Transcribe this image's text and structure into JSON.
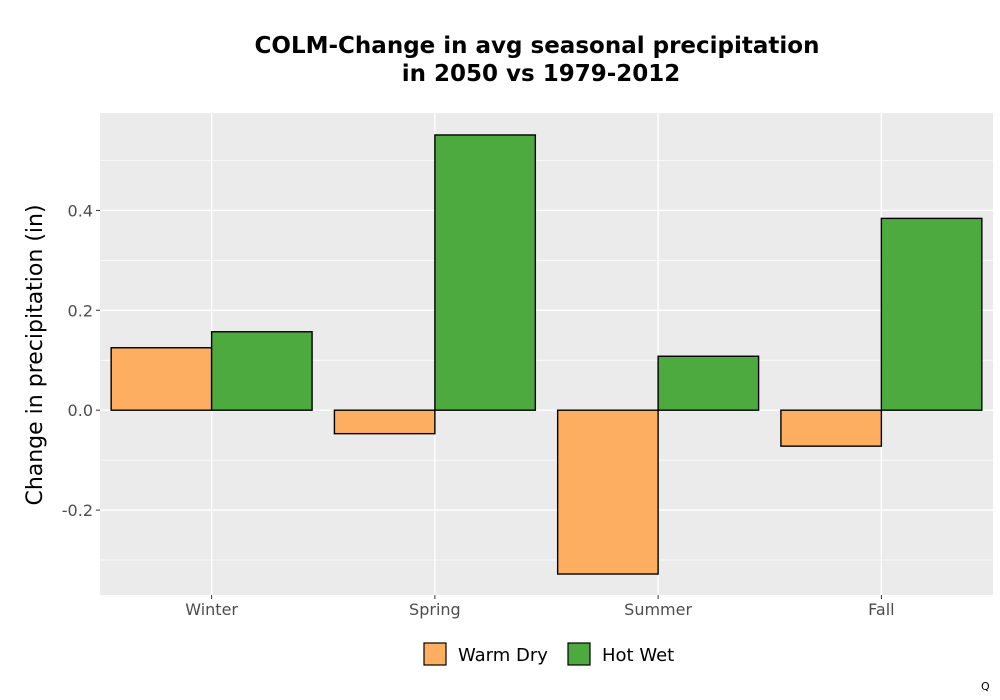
{
  "chart_data": {
    "type": "bar",
    "title": "COLM-Change in avg seasonal precipitation\nin 2050 vs 1979-2012",
    "xlabel": "",
    "ylabel": "Change in precipitation (in)",
    "categories": [
      "Winter",
      "Spring",
      "Summer",
      "Fall"
    ],
    "series": [
      {
        "name": "Warm Dry",
        "color": "#fdae61",
        "values": [
          0.125,
          -0.047,
          -0.328,
          -0.072
        ]
      },
      {
        "name": "Hot Wet",
        "color": "#4daa3f",
        "values": [
          0.157,
          0.551,
          0.108,
          0.384
        ]
      }
    ],
    "ylim": [
      -0.37,
      0.595
    ],
    "yticks": [
      -0.2,
      0.0,
      0.2,
      0.4
    ],
    "ytick_labels": [
      "-0.2",
      "0.0",
      "0.2",
      "0.4"
    ],
    "grid": true,
    "legend_position": "bottom",
    "panel_background": "#ebebeb",
    "bar_outline": "#000000"
  },
  "corner_mark": "Q"
}
